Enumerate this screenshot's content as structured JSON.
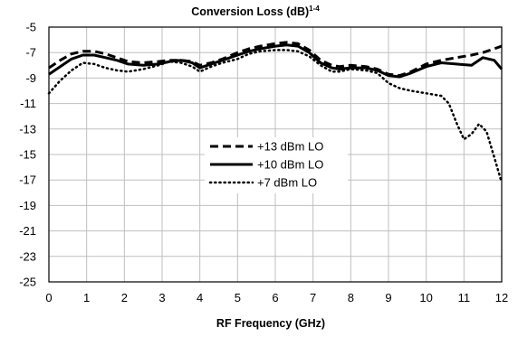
{
  "chart_data": {
    "type": "line",
    "title": "Conversion Loss (dB)",
    "title_superscript": "1-4",
    "xlabel": "RF Frequency (GHz)",
    "ylabel": "",
    "xlim": [
      0,
      12
    ],
    "ylim": [
      -25,
      -5
    ],
    "x_ticks": [
      0,
      1,
      2,
      3,
      4,
      5,
      6,
      7,
      8,
      9,
      10,
      11,
      12
    ],
    "y_ticks": [
      -5,
      -7,
      -9,
      -11,
      -13,
      -15,
      -17,
      -19,
      -21,
      -23,
      -25
    ],
    "grid": true,
    "legend_position": "center-left",
    "series": [
      {
        "name": "+13 dBm LO",
        "style": "dashed",
        "color": "#000000",
        "points": [
          [
            0,
            -8.2
          ],
          [
            0.3,
            -7.6
          ],
          [
            0.6,
            -7.1
          ],
          [
            0.9,
            -6.9
          ],
          [
            1.2,
            -6.9
          ],
          [
            1.5,
            -7.1
          ],
          [
            1.8,
            -7.4
          ],
          [
            2.1,
            -7.7
          ],
          [
            2.5,
            -7.8
          ],
          [
            2.9,
            -7.7
          ],
          [
            3.2,
            -7.6
          ],
          [
            3.5,
            -7.6
          ],
          [
            3.8,
            -7.7
          ],
          [
            4.0,
            -8.0
          ],
          [
            4.3,
            -7.8
          ],
          [
            4.6,
            -7.5
          ],
          [
            5.0,
            -7.0
          ],
          [
            5.3,
            -6.7
          ],
          [
            5.6,
            -6.5
          ],
          [
            6.0,
            -6.3
          ],
          [
            6.3,
            -6.2
          ],
          [
            6.6,
            -6.3
          ],
          [
            6.9,
            -6.8
          ],
          [
            7.2,
            -7.6
          ],
          [
            7.5,
            -8.0
          ],
          [
            7.7,
            -8.1
          ],
          [
            8.0,
            -8.0
          ],
          [
            8.4,
            -8.1
          ],
          [
            8.7,
            -8.3
          ],
          [
            9.0,
            -8.7
          ],
          [
            9.3,
            -8.8
          ],
          [
            9.6,
            -8.5
          ],
          [
            10.0,
            -7.9
          ],
          [
            10.4,
            -7.6
          ],
          [
            10.8,
            -7.4
          ],
          [
            11.2,
            -7.2
          ],
          [
            11.5,
            -7.0
          ],
          [
            11.8,
            -6.7
          ],
          [
            12.0,
            -6.5
          ]
        ]
      },
      {
        "name": "+10 dBm LO",
        "style": "solid",
        "color": "#000000",
        "points": [
          [
            0,
            -8.7
          ],
          [
            0.3,
            -8.1
          ],
          [
            0.6,
            -7.5
          ],
          [
            0.9,
            -7.2
          ],
          [
            1.2,
            -7.2
          ],
          [
            1.5,
            -7.4
          ],
          [
            1.8,
            -7.6
          ],
          [
            2.1,
            -7.9
          ],
          [
            2.5,
            -8.0
          ],
          [
            2.9,
            -7.9
          ],
          [
            3.2,
            -7.7
          ],
          [
            3.5,
            -7.6
          ],
          [
            3.8,
            -7.8
          ],
          [
            4.0,
            -8.2
          ],
          [
            4.3,
            -7.9
          ],
          [
            4.6,
            -7.6
          ],
          [
            5.0,
            -7.2
          ],
          [
            5.3,
            -6.9
          ],
          [
            5.6,
            -6.7
          ],
          [
            6.0,
            -6.5
          ],
          [
            6.3,
            -6.4
          ],
          [
            6.6,
            -6.5
          ],
          [
            6.9,
            -7.0
          ],
          [
            7.2,
            -7.8
          ],
          [
            7.5,
            -8.2
          ],
          [
            7.7,
            -8.3
          ],
          [
            8.0,
            -8.2
          ],
          [
            8.4,
            -8.2
          ],
          [
            8.7,
            -8.4
          ],
          [
            9.0,
            -8.8
          ],
          [
            9.3,
            -8.9
          ],
          [
            9.6,
            -8.6
          ],
          [
            10.0,
            -8.1
          ],
          [
            10.4,
            -7.8
          ],
          [
            10.8,
            -7.9
          ],
          [
            11.2,
            -8.0
          ],
          [
            11.5,
            -7.4
          ],
          [
            11.8,
            -7.6
          ],
          [
            12.0,
            -8.3
          ]
        ]
      },
      {
        "name": "+7 dBm LO",
        "style": "dotted",
        "color": "#000000",
        "points": [
          [
            0,
            -10.2
          ],
          [
            0.3,
            -9.2
          ],
          [
            0.6,
            -8.4
          ],
          [
            0.9,
            -7.8
          ],
          [
            1.2,
            -7.9
          ],
          [
            1.5,
            -8.2
          ],
          [
            1.8,
            -8.4
          ],
          [
            2.1,
            -8.5
          ],
          [
            2.5,
            -8.3
          ],
          [
            2.9,
            -8.0
          ],
          [
            3.2,
            -7.7
          ],
          [
            3.5,
            -7.8
          ],
          [
            3.8,
            -8.1
          ],
          [
            4.0,
            -8.5
          ],
          [
            4.3,
            -8.1
          ],
          [
            4.6,
            -7.8
          ],
          [
            5.0,
            -7.5
          ],
          [
            5.3,
            -7.1
          ],
          [
            5.6,
            -6.9
          ],
          [
            6.0,
            -6.8
          ],
          [
            6.3,
            -6.8
          ],
          [
            6.6,
            -6.9
          ],
          [
            6.9,
            -7.3
          ],
          [
            7.2,
            -8.0
          ],
          [
            7.5,
            -8.5
          ],
          [
            7.7,
            -8.5
          ],
          [
            8.0,
            -8.3
          ],
          [
            8.4,
            -8.4
          ],
          [
            8.7,
            -8.6
          ],
          [
            9.0,
            -9.4
          ],
          [
            9.3,
            -9.8
          ],
          [
            9.6,
            -10.0
          ],
          [
            10.0,
            -10.2
          ],
          [
            10.4,
            -10.4
          ],
          [
            10.6,
            -11.0
          ],
          [
            10.8,
            -12.5
          ],
          [
            11.0,
            -13.8
          ],
          [
            11.2,
            -13.4
          ],
          [
            11.4,
            -12.6
          ],
          [
            11.6,
            -13.2
          ],
          [
            11.8,
            -15.2
          ],
          [
            12.0,
            -17.2
          ]
        ]
      }
    ]
  }
}
